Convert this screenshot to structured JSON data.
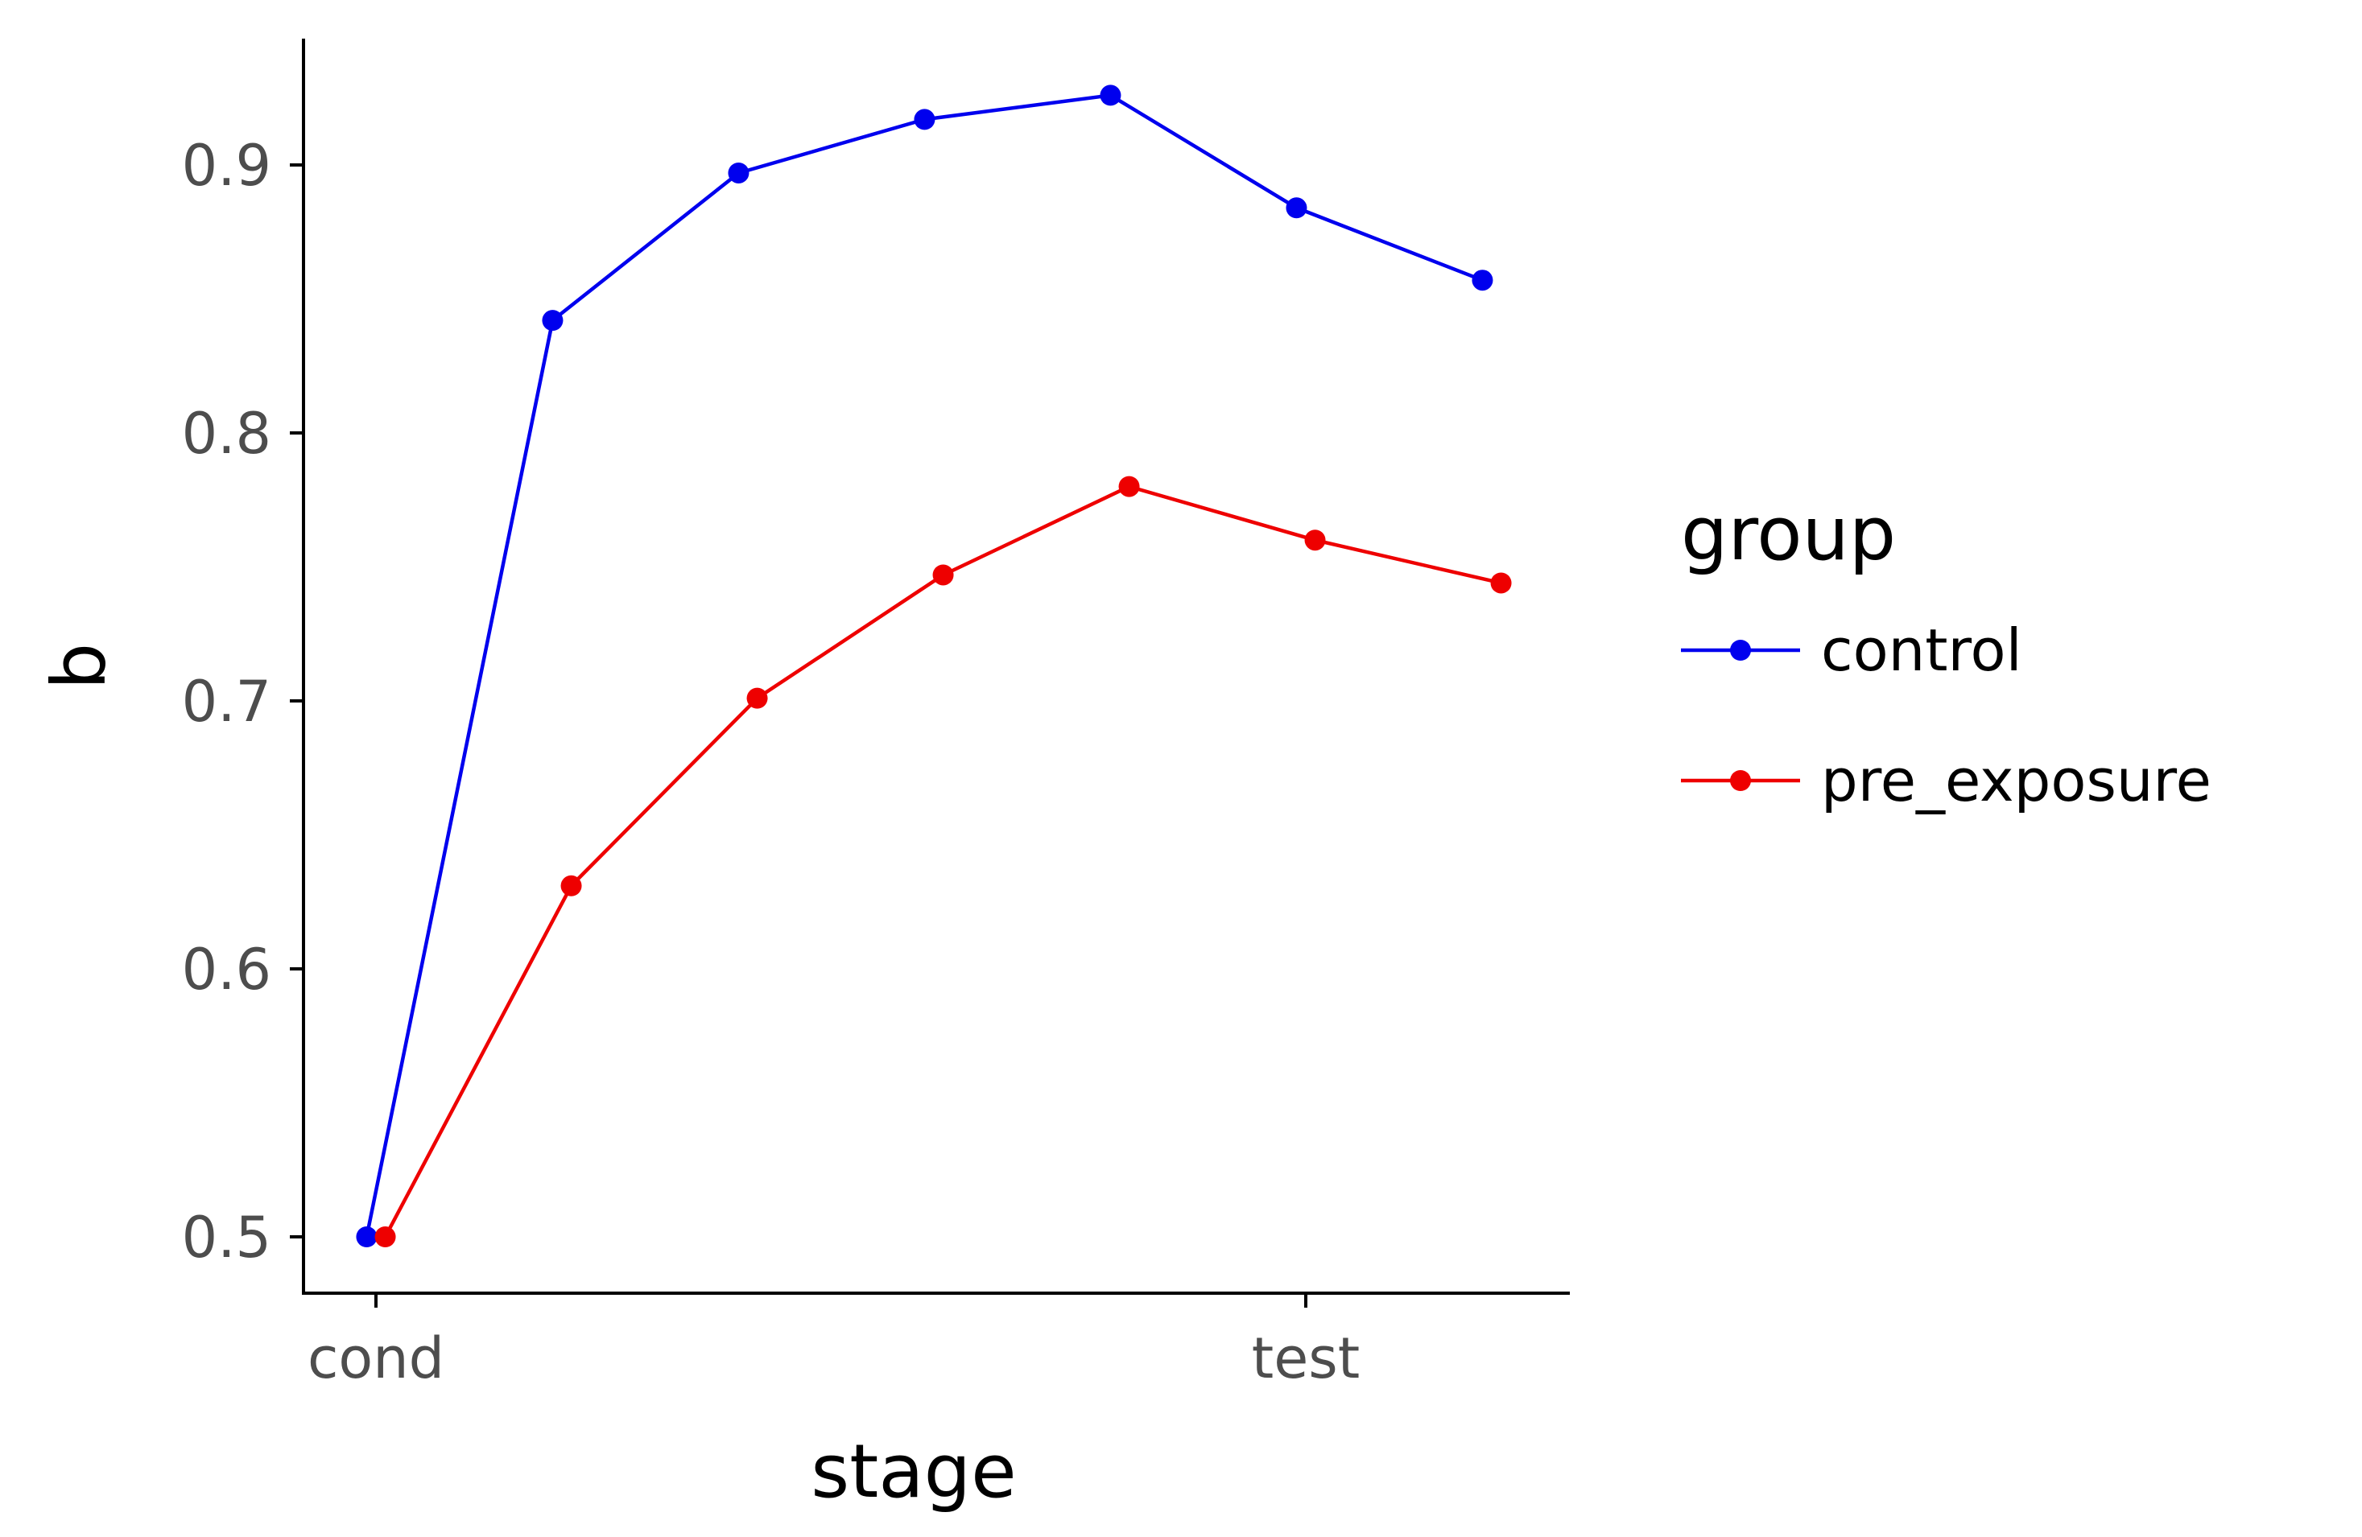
{
  "chart_data": {
    "type": "line",
    "xlabel": "stage",
    "ylabel": "b",
    "x_tick_labels": [
      "cond",
      "test"
    ],
    "y_ticks": [
      0.5,
      0.6,
      0.7,
      0.8,
      0.9
    ],
    "y_tick_labels": [
      "0.5",
      "0.6",
      "0.7",
      "0.8",
      "0.9"
    ],
    "ylim": [
      0.48,
      0.95
    ],
    "grid": false,
    "legend_title": "group",
    "legend_placement": "right",
    "series": [
      {
        "name": "control",
        "color": "#0000ee",
        "x": [
          0.99,
          1.19,
          1.39,
          1.59,
          1.79,
          1.99,
          2.19
        ],
        "values": [
          0.5,
          0.842,
          0.897,
          0.917,
          0.926,
          0.884,
          0.857
        ]
      },
      {
        "name": "pre_exposure",
        "color": "#ee0000",
        "x": [
          1.01,
          1.21,
          1.41,
          1.61,
          1.81,
          2.01,
          2.21
        ],
        "values": [
          0.5,
          0.631,
          0.701,
          0.747,
          0.78,
          0.76,
          0.744
        ]
      }
    ],
    "x_tick_positions": [
      1,
      2
    ]
  }
}
